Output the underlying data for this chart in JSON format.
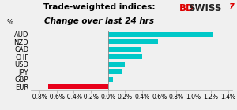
{
  "title_line1": "Trade-weighted indices:",
  "title_line2": "Change over last 24 hrs",
  "ylabel_text": "%",
  "categories": [
    "AUD",
    "NZD",
    "CAD",
    "CHF",
    "USD",
    "JPY",
    "GBP",
    "EUR"
  ],
  "values": [
    1.22,
    0.58,
    0.38,
    0.4,
    0.2,
    0.17,
    0.06,
    -0.7
  ],
  "bar_colors": [
    "#00c8c8",
    "#00c8c8",
    "#00c8c8",
    "#00c8c8",
    "#00c8c8",
    "#00c8c8",
    "#00c8c8",
    "#e8001a"
  ],
  "teal_color": "#00c8c0",
  "xlim": [
    -0.9,
    1.45
  ],
  "xticks": [
    -0.8,
    -0.6,
    -0.4,
    -0.2,
    0.0,
    0.2,
    0.4,
    0.6,
    0.8,
    1.0,
    1.2,
    1.4
  ],
  "background_color": "#f0f0f0",
  "bar_height": 0.65,
  "title_fontsize": 7.5,
  "axis_fontsize": 5.5,
  "ytick_fontsize": 6.0,
  "logo_bd_color": "#dd0000",
  "logo_swiss_color": "#222222",
  "logo_arrow_color": "#dd0000"
}
